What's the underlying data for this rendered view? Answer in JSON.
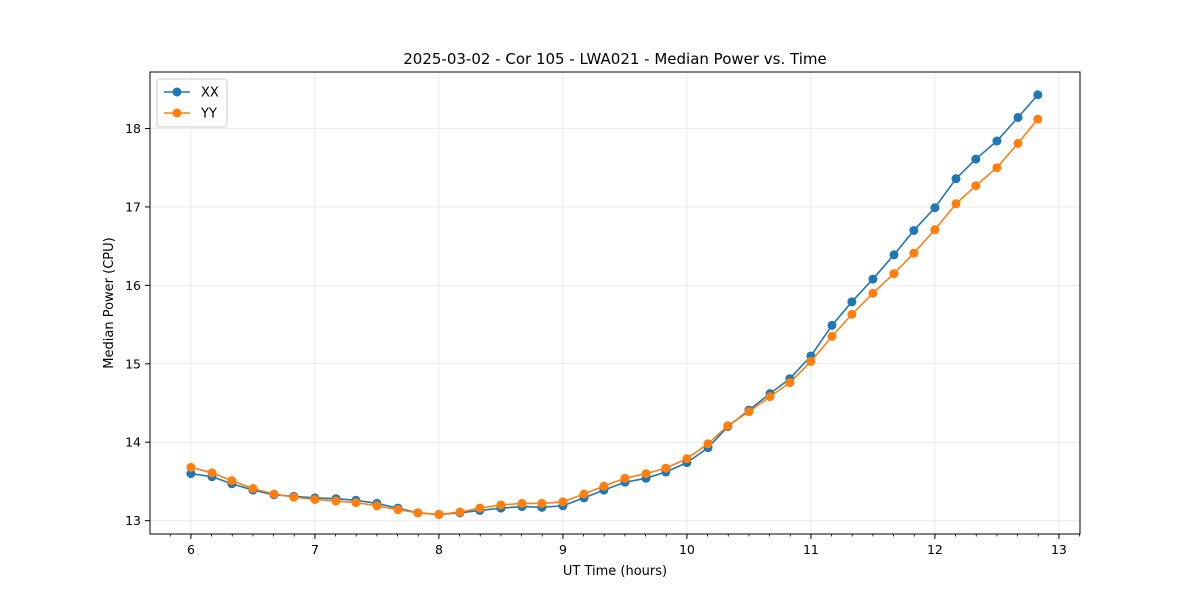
{
  "chart_data": {
    "type": "line",
    "title": "2025-03-02 - Cor 105 - LWA021 - Median Power vs. Time",
    "xlabel": "UT Time (hours)",
    "ylabel": "Median Power (CPU)",
    "xlim": [
      5.67,
      13.17
    ],
    "ylim": [
      12.83,
      18.72
    ],
    "xticks": [
      6,
      7,
      8,
      9,
      10,
      11,
      12,
      13
    ],
    "xtick_labels": [
      "6",
      "7",
      "8",
      "9",
      "10",
      "11",
      "12",
      "13"
    ],
    "yticks": [
      13,
      14,
      15,
      16,
      17,
      18
    ],
    "ytick_labels": [
      "13",
      "14",
      "15",
      "16",
      "17",
      "18"
    ],
    "grid": true,
    "legend_position": "top-left",
    "x": [
      6.0,
      6.17,
      6.33,
      6.5,
      6.67,
      6.83,
      7.0,
      7.17,
      7.33,
      7.5,
      7.67,
      7.83,
      8.0,
      8.17,
      8.33,
      8.5,
      8.67,
      8.83,
      9.0,
      9.17,
      9.33,
      9.5,
      9.67,
      9.83,
      10.0,
      10.17,
      10.33,
      10.5,
      10.67,
      10.83,
      11.0,
      11.17,
      11.33,
      11.5,
      11.67,
      11.83,
      12.0,
      12.17,
      12.33,
      12.5,
      12.67,
      12.83
    ],
    "series": [
      {
        "name": "XX",
        "color": "#1f77b4",
        "values": [
          13.6,
          13.56,
          13.47,
          13.39,
          13.33,
          13.31,
          13.29,
          13.28,
          13.26,
          13.22,
          13.16,
          13.1,
          13.08,
          13.1,
          13.13,
          13.16,
          13.18,
          13.17,
          13.19,
          13.29,
          13.39,
          13.49,
          13.54,
          13.62,
          13.74,
          13.93,
          14.2,
          14.41,
          14.62,
          14.81,
          15.1,
          15.49,
          15.79,
          16.08,
          16.39,
          16.7,
          16.99,
          17.36,
          17.61,
          17.84,
          18.14,
          18.43
        ]
      },
      {
        "name": "YY",
        "color": "#ff7f0e",
        "values": [
          13.68,
          13.61,
          13.51,
          13.41,
          13.34,
          13.3,
          13.27,
          13.25,
          13.23,
          13.19,
          13.14,
          13.1,
          13.08,
          13.11,
          13.16,
          13.2,
          13.22,
          13.22,
          13.24,
          13.34,
          13.44,
          13.54,
          13.6,
          13.67,
          13.79,
          13.98,
          14.21,
          14.39,
          14.58,
          14.76,
          15.03,
          15.35,
          15.63,
          15.9,
          16.15,
          16.41,
          16.71,
          17.04,
          17.27,
          17.5,
          17.81,
          18.12
        ]
      }
    ]
  }
}
